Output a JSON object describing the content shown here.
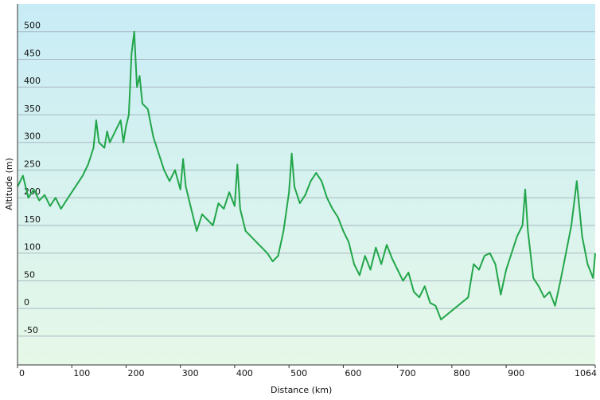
{
  "chart_data": {
    "type": "line",
    "x_label": "Distance  (km)",
    "y_label": "Altitude (m)",
    "x": [
      0,
      10,
      20,
      30,
      40,
      50,
      60,
      70,
      80,
      90,
      100,
      110,
      120,
      130,
      140,
      145,
      150,
      160,
      165,
      170,
      180,
      190,
      195,
      200,
      205,
      210,
      215,
      220,
      225,
      230,
      240,
      250,
      260,
      270,
      280,
      290,
      300,
      305,
      310,
      320,
      330,
      340,
      350,
      360,
      370,
      380,
      390,
      400,
      405,
      410,
      420,
      430,
      440,
      450,
      460,
      470,
      480,
      490,
      500,
      505,
      510,
      520,
      530,
      540,
      550,
      560,
      570,
      580,
      590,
      600,
      610,
      620,
      630,
      640,
      650,
      660,
      670,
      680,
      690,
      700,
      710,
      720,
      730,
      740,
      750,
      760,
      770,
      780,
      830,
      840,
      850,
      860,
      870,
      880,
      890,
      900,
      910,
      920,
      930,
      935,
      940,
      950,
      960,
      970,
      980,
      990,
      1000,
      1010,
      1020,
      1030,
      1040,
      1050,
      1060,
      1064
    ],
    "values": [
      220,
      240,
      200,
      215,
      195,
      205,
      185,
      200,
      180,
      195,
      210,
      225,
      240,
      260,
      290,
      340,
      300,
      290,
      320,
      300,
      320,
      340,
      300,
      330,
      350,
      460,
      500,
      400,
      420,
      370,
      360,
      310,
      280,
      250,
      230,
      250,
      215,
      270,
      220,
      180,
      140,
      170,
      160,
      150,
      190,
      180,
      210,
      185,
      260,
      180,
      140,
      130,
      120,
      110,
      100,
      85,
      95,
      140,
      210,
      280,
      220,
      190,
      205,
      230,
      245,
      230,
      200,
      180,
      165,
      140,
      120,
      80,
      60,
      95,
      70,
      110,
      80,
      115,
      90,
      70,
      50,
      65,
      30,
      20,
      40,
      10,
      5,
      -20,
      20,
      80,
      70,
      95,
      100,
      80,
      25,
      70,
      100,
      130,
      150,
      215,
      140,
      55,
      40,
      20,
      30,
      5,
      50,
      100,
      150,
      230,
      130,
      80,
      55,
      100
    ],
    "color": "#22a64a",
    "xlim": [
      0,
      1064
    ],
    "ylim": [
      -102,
      550
    ],
    "xticks": [
      0,
      100,
      200,
      300,
      400,
      500,
      600,
      700,
      800,
      900,
      1064
    ],
    "yticks": [
      -50,
      0,
      50,
      100,
      150,
      200,
      250,
      300,
      350,
      400,
      450,
      500
    ],
    "grid": true
  }
}
